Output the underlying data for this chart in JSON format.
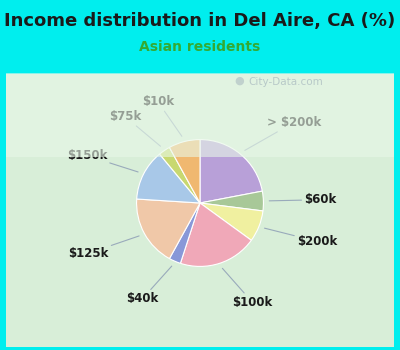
{
  "title": "Income distribution in Del Aire, CA (%)",
  "subtitle": "Asian residents",
  "title_color": "#1a1a1a",
  "subtitle_color": "#33aa33",
  "background_color": "#00eeee",
  "chart_bg_gradient_top": "#e8f8f0",
  "chart_bg_gradient_bottom": "#c8e8d0",
  "watermark": "City-Data.com",
  "slices": [
    {
      "label": "> $200k",
      "value": 22,
      "color": "#b8a0d8"
    },
    {
      "label": "$60k",
      "value": 5,
      "color": "#a8c898"
    },
    {
      "label": "$200k",
      "value": 8,
      "color": "#f0f0a0"
    },
    {
      "label": "$100k",
      "value": 20,
      "color": "#f0a8b8"
    },
    {
      "label": "$40k",
      "value": 3,
      "color": "#8898d8"
    },
    {
      "label": "$125k",
      "value": 18,
      "color": "#f0c8a8"
    },
    {
      "label": "$150k",
      "value": 13,
      "color": "#a8c8e8"
    },
    {
      "label": "$75k",
      "value": 3,
      "color": "#c8d870"
    },
    {
      "label": "$10k",
      "value": 8,
      "color": "#f0b870"
    }
  ],
  "label_fontsize": 8.5,
  "title_fontsize": 13,
  "subtitle_fontsize": 10,
  "startangle": 90
}
